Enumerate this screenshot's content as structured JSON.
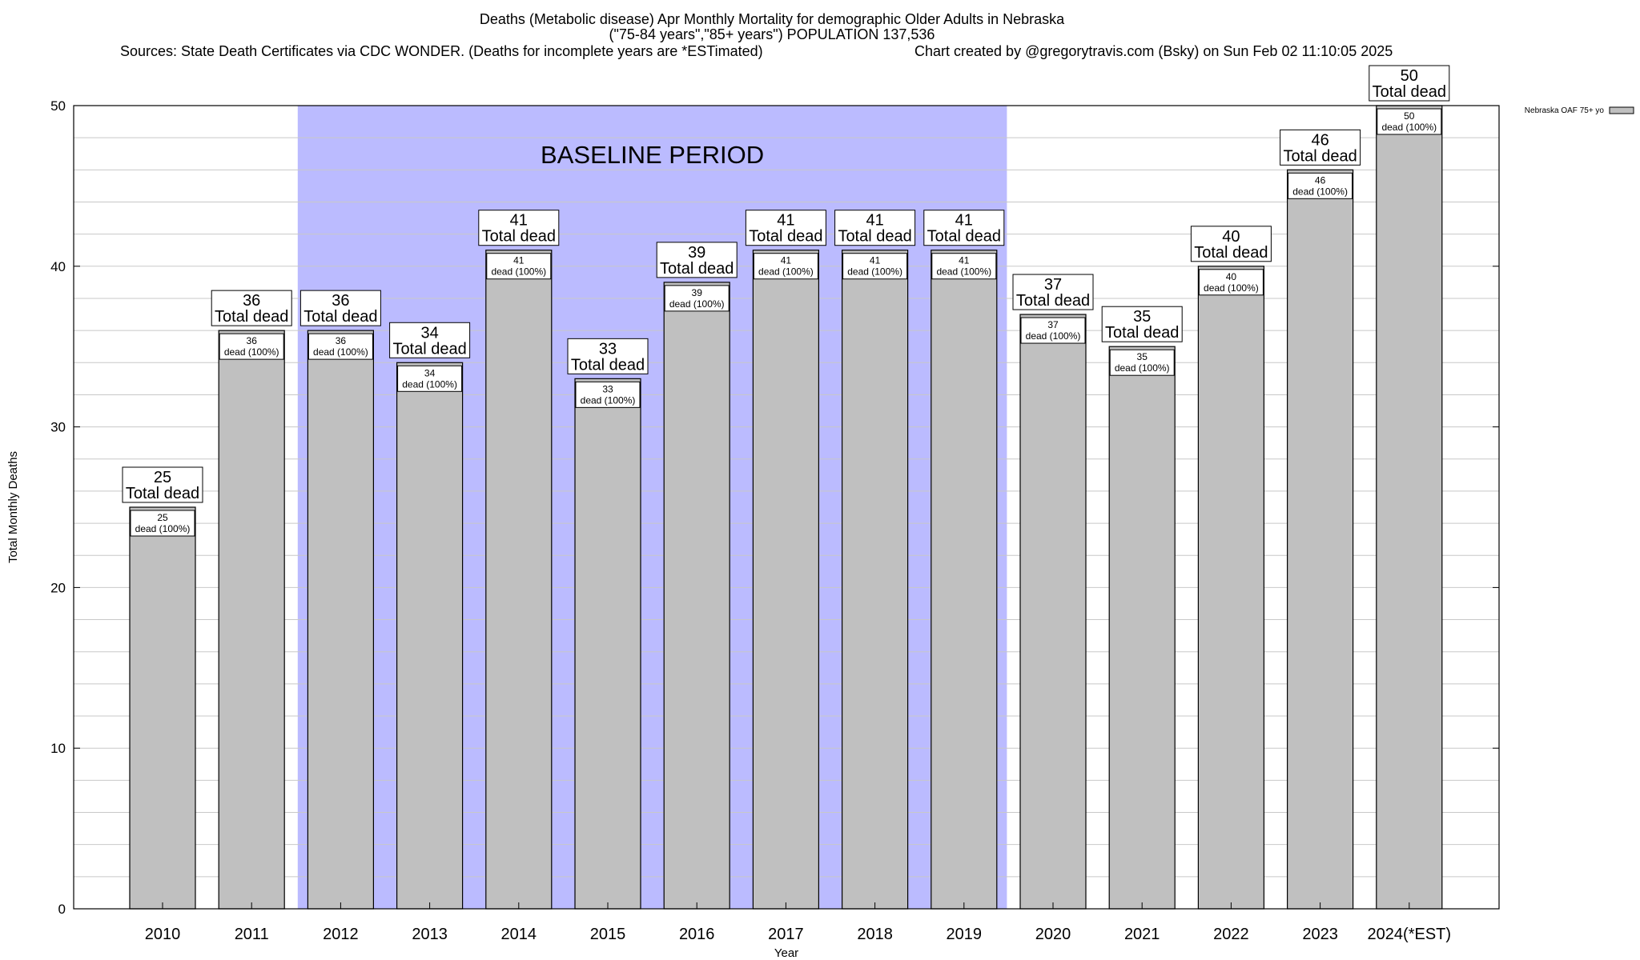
{
  "titles": {
    "line1": "Deaths (Metabolic disease) Apr Monthly Mortality for demographic Older Adults in Nebraska",
    "line2": "(\"75-84 years\",\"85+ years\") POPULATION 137,536",
    "line3_left": "Sources: State Death Certificates via CDC WONDER. (Deaths for incomplete years are *ESTimated)",
    "line3_right": "Chart created by @gregorytravis.com (Bsky) on Sun Feb 02 11:10:05 2025"
  },
  "chart_data": {
    "type": "bar",
    "title": "Deaths (Metabolic disease) Apr Monthly Mortality for demographic Older Adults in Nebraska",
    "xlabel": "Year",
    "ylabel": "Total Monthly Deaths",
    "ylim": [
      0,
      50
    ],
    "yticks": [
      0,
      10,
      20,
      30,
      40,
      50
    ],
    "grid": true,
    "legend_position": "top-right",
    "categories": [
      "2010",
      "2011",
      "2012",
      "2013",
      "2014",
      "2015",
      "2016",
      "2017",
      "2018",
      "2019",
      "2020",
      "2021",
      "2022",
      "2023",
      "2024(*EST)"
    ],
    "series": [
      {
        "name": "Nebraska OAF 75+ yo",
        "color": "#c0c0c0",
        "values": [
          25,
          36,
          36,
          34,
          41,
          33,
          39,
          41,
          41,
          41,
          37,
          35,
          40,
          46,
          50
        ]
      }
    ],
    "total_label_suffix": "Total dead",
    "inner_label_suffix": "dead (100%)",
    "baseline": {
      "label": "BASELINE PERIOD",
      "start": "2012",
      "end": "2019",
      "color": "#bbbbff"
    }
  }
}
